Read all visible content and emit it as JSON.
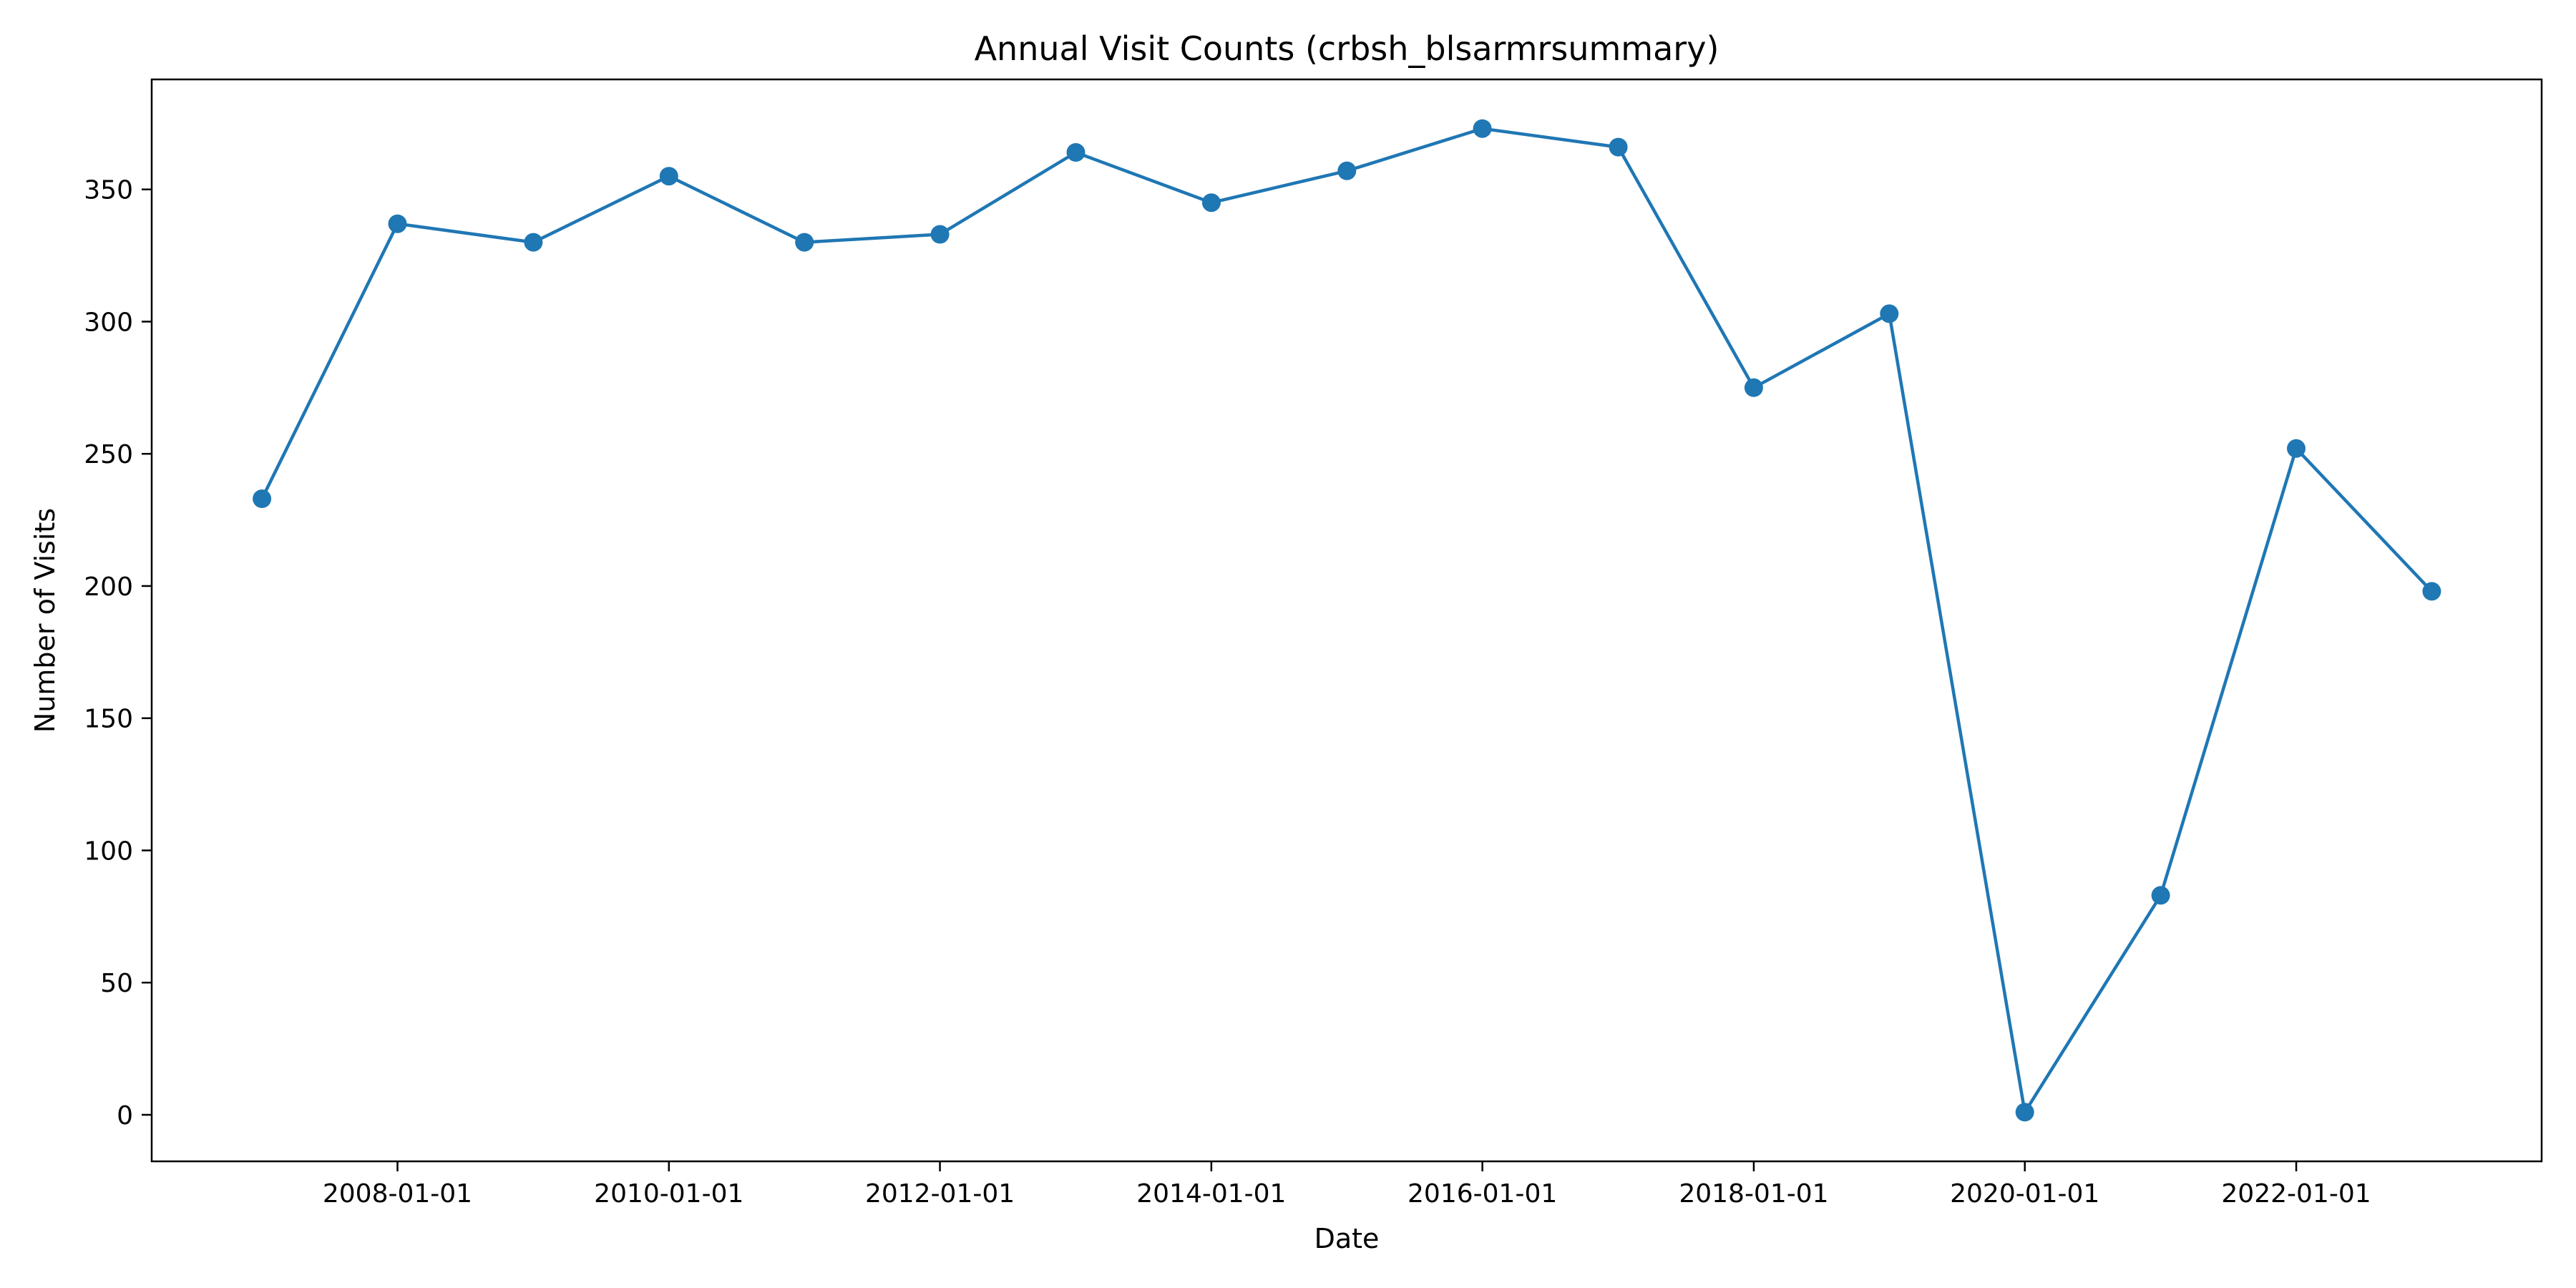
{
  "chart_data": {
    "type": "line",
    "title": "Annual Visit Counts (crbsh_blsarmrsummary)",
    "xlabel": "Date",
    "ylabel": "Number of Visits",
    "x": [
      "2007-01-01",
      "2008-01-01",
      "2009-01-01",
      "2010-01-01",
      "2011-01-01",
      "2012-01-01",
      "2013-01-01",
      "2014-01-01",
      "2015-01-01",
      "2016-01-01",
      "2017-01-01",
      "2018-01-01",
      "2019-01-01",
      "2020-01-01",
      "2021-01-01",
      "2022-01-01",
      "2023-01-01"
    ],
    "series": [
      {
        "values": [
          233,
          337,
          330,
          355,
          330,
          333,
          364,
          345,
          357,
          373,
          366,
          275,
          303,
          1,
          83,
          252,
          198
        ],
        "color": "#1f77b4",
        "marker": "circle"
      }
    ],
    "xticks": [
      "2008-01-01",
      "2010-01-01",
      "2012-01-01",
      "2014-01-01",
      "2016-01-01",
      "2018-01-01",
      "2020-01-01",
      "2022-01-01"
    ],
    "yticks": [
      0,
      50,
      100,
      150,
      200,
      250,
      300,
      350
    ],
    "xlim": [
      "2006-03-10",
      "2023-10-24"
    ],
    "ylim": [
      -17.6,
      391.6
    ],
    "grid": false,
    "legend": "none"
  }
}
